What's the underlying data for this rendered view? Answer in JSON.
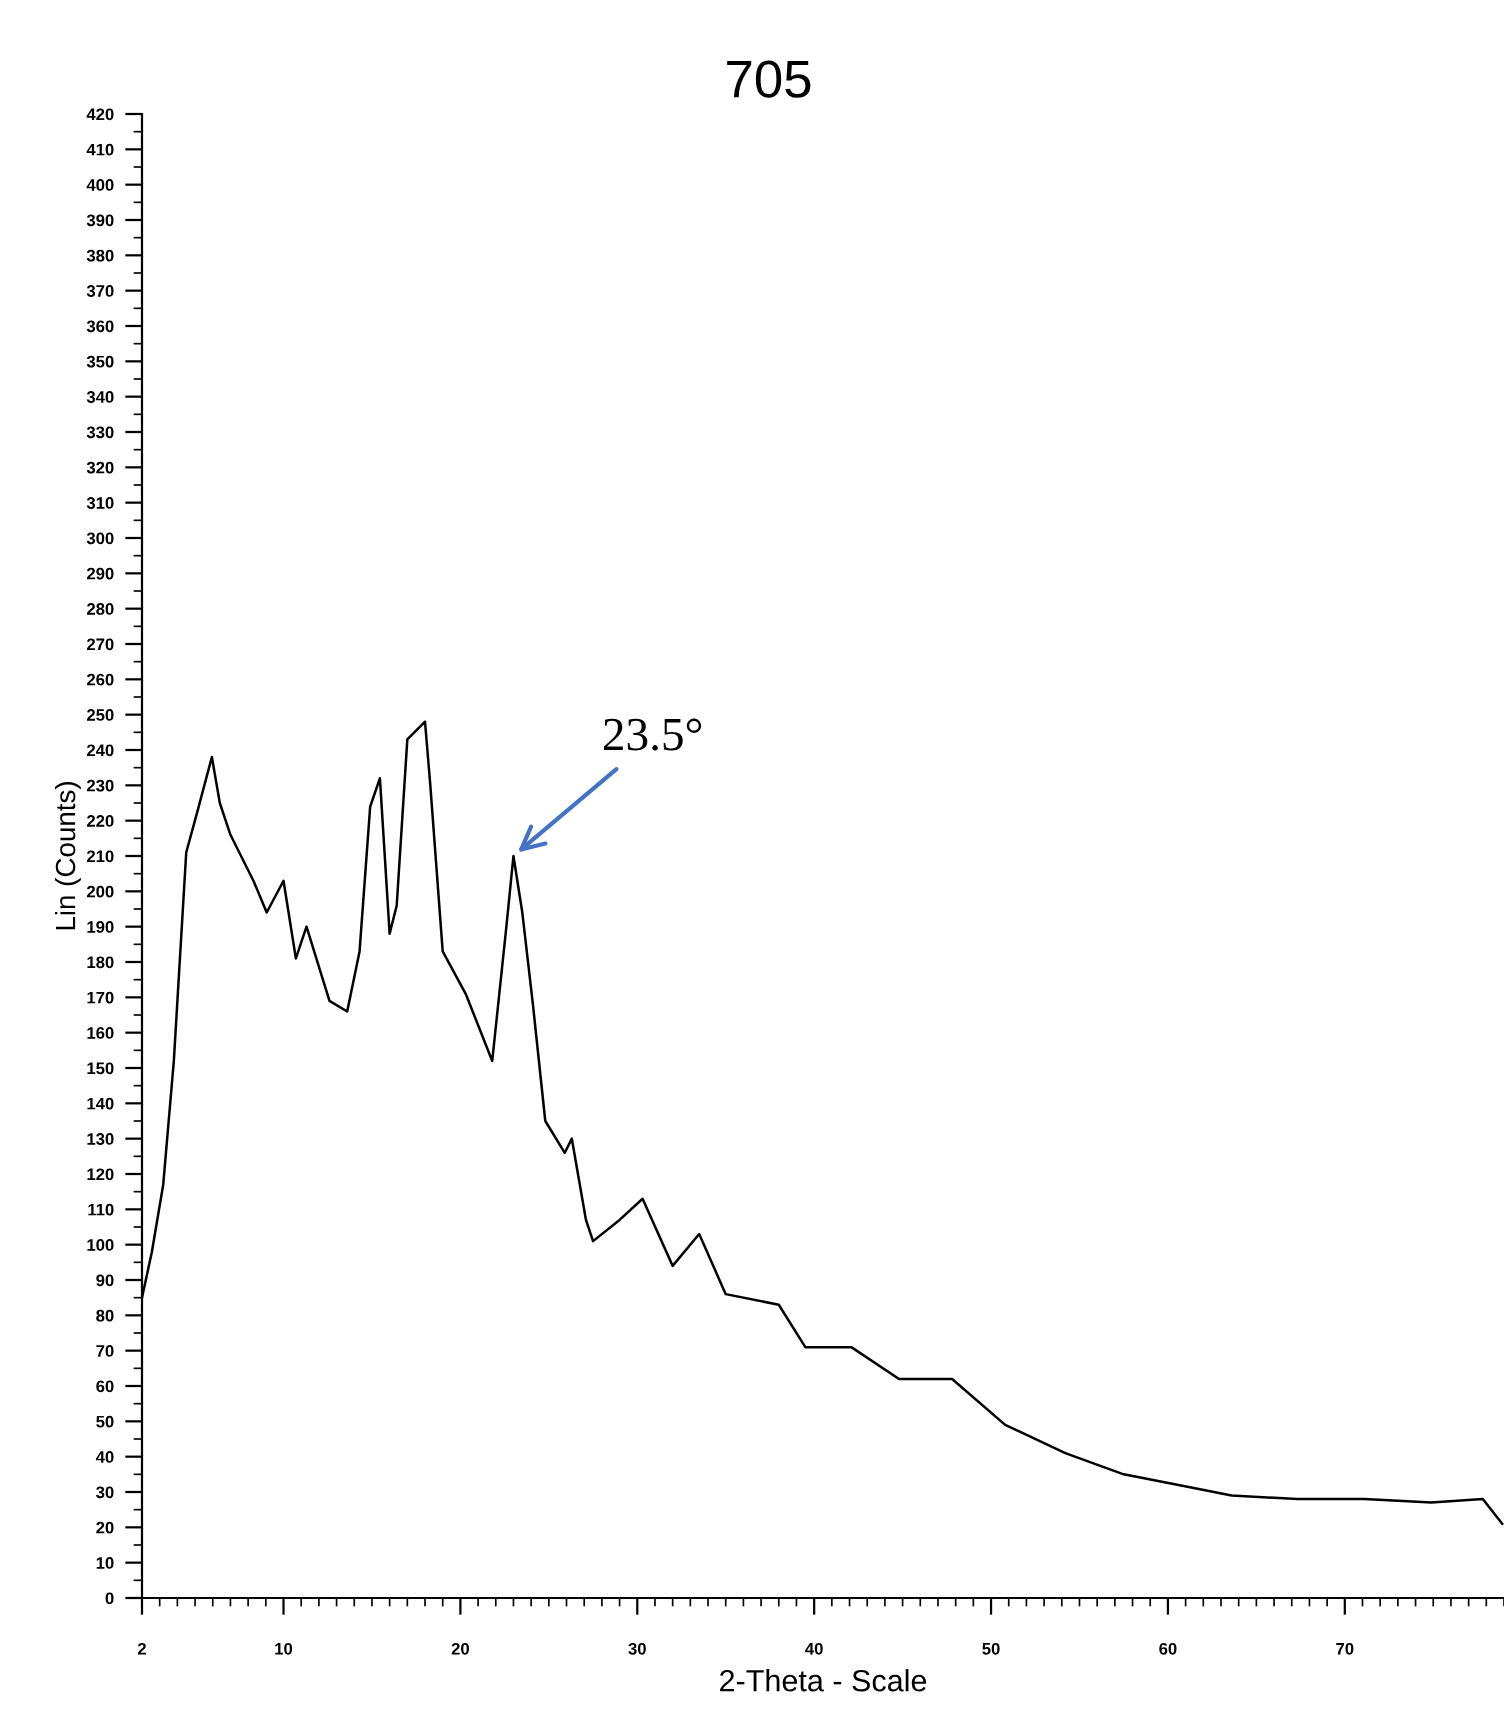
{
  "chart_data": {
    "type": "line",
    "title": "705",
    "xlabel": "2-Theta - Scale",
    "ylabel": "Lin (Counts)",
    "x": [
      2,
      2.56,
      3.2,
      3.8,
      4.5,
      5.1,
      5.95,
      6.4,
      7.0,
      8.3,
      9.05,
      10,
      10.7,
      11.3,
      12.6,
      13.6,
      14.3,
      14.9,
      15.45,
      16.0,
      16.4,
      17.0,
      18.0,
      18.3,
      19.0,
      20.3,
      21.8,
      22.6,
      23.0,
      23.5,
      24.1,
      24.8,
      25.9,
      26.3,
      27.1,
      27.5,
      29.0,
      30.3,
      32.0,
      33.5,
      35.0,
      38.0,
      39.5,
      42.1,
      44.8,
      47.8,
      50.8,
      54.2,
      57.5,
      60.6,
      63.6,
      67.3,
      71.1,
      74.9,
      77.8,
      78.9
    ],
    "series": [
      {
        "color": "#000000",
        "values": [
          85,
          98,
          117,
          152,
          211,
          222,
          238,
          225,
          216,
          203,
          194,
          203,
          181,
          190,
          169,
          166,
          183,
          224,
          232,
          188,
          196,
          243,
          248,
          230,
          183,
          171,
          152,
          190,
          210,
          194,
          168,
          135,
          126,
          130,
          107,
          101,
          107,
          113,
          94,
          103,
          86,
          83,
          71,
          71,
          62,
          62,
          49,
          41,
          35,
          32,
          29,
          28,
          28,
          27,
          28,
          21
        ]
      }
    ],
    "xlim": [
      2,
      79
    ],
    "xticks": [
      2,
      10,
      20,
      30,
      40,
      50,
      60,
      70
    ],
    "ylim": [
      0,
      420
    ],
    "yticks": [
      0,
      10,
      20,
      30,
      40,
      50,
      60,
      70,
      80,
      90,
      100,
      110,
      120,
      130,
      140,
      150,
      160,
      170,
      180,
      190,
      200,
      210,
      220,
      230,
      240,
      250,
      260,
      270,
      280,
      290,
      300,
      310,
      320,
      330,
      340,
      350,
      360,
      370,
      380,
      390,
      400,
      410,
      420
    ],
    "annotations": [
      {
        "text": "23.5°",
        "x": 23,
        "y": 210
      }
    ],
    "grid": false,
    "legend": false,
    "marker": "none",
    "line_style": "solid"
  }
}
